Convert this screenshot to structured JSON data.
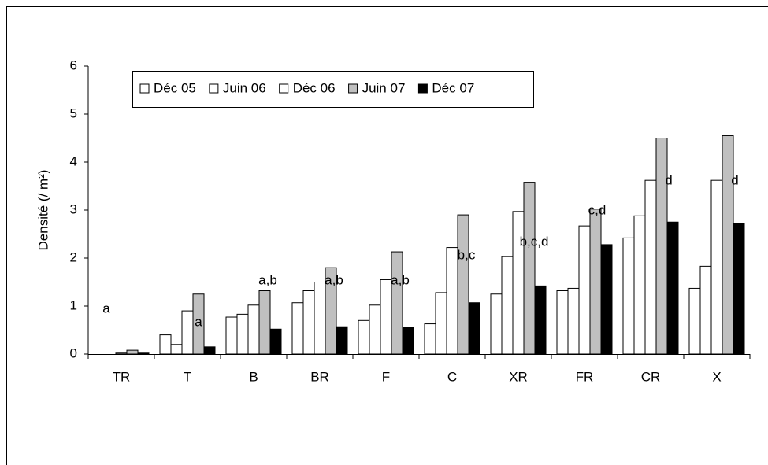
{
  "chart_data": {
    "type": "bar",
    "y_label": "Densité (/ m²)",
    "categories": [
      "TR",
      "T",
      "B",
      "BR",
      "F",
      "C",
      "XR",
      "FR",
      "CR",
      "X"
    ],
    "series": [
      {
        "name": "Déc 05",
        "color": "#ffffff",
        "values": [
          0,
          0.4,
          0.77,
          1.07,
          0.7,
          0.63,
          1.25,
          1.32,
          2.42,
          1.37
        ]
      },
      {
        "name": "Juin 06",
        "color": "#ffffff",
        "values": [
          0,
          0.2,
          0.83,
          1.32,
          1.02,
          1.28,
          2.03,
          1.37,
          2.88,
          1.83
        ]
      },
      {
        "name": "Déc 06",
        "color": "#ffffff",
        "values": [
          0.02,
          0.9,
          1.02,
          1.5,
          1.55,
          2.22,
          2.97,
          2.67,
          3.62,
          3.62
        ]
      },
      {
        "name": "Juin 07",
        "color": "#c0c0c0",
        "values": [
          0.08,
          1.25,
          1.32,
          1.8,
          2.13,
          2.9,
          3.58,
          3.02,
          4.5,
          4.55
        ]
      },
      {
        "name": "Déc 07",
        "color": "#000000",
        "values": [
          0.02,
          0.15,
          0.52,
          0.57,
          0.55,
          1.07,
          1.42,
          2.28,
          2.75,
          2.72
        ]
      }
    ],
    "annotations": [
      "a",
      "a",
      "a,b",
      "a,b",
      "a,b",
      "b,c",
      "b,c,d",
      "c,d",
      "d",
      "d"
    ],
    "ylim": [
      0,
      6
    ],
    "yticks": [
      0,
      1,
      2,
      3,
      4,
      5,
      6
    ]
  }
}
